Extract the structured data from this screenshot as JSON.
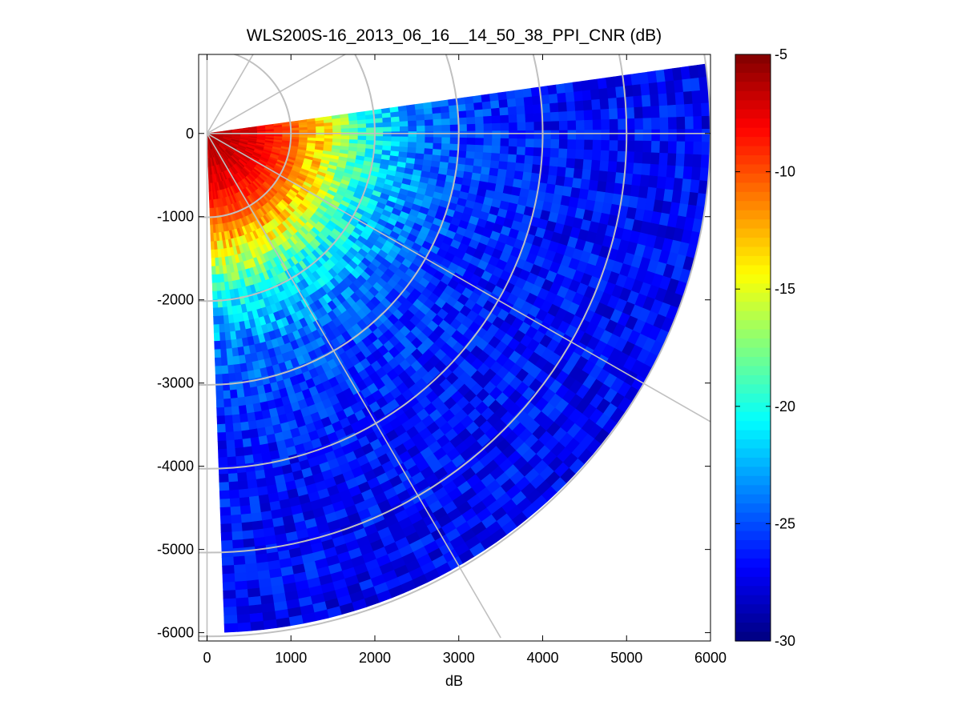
{
  "chart_data": {
    "type": "heatmap",
    "subtype": "polar-ppi-sector",
    "title": "WLS200S-16_2013_06_16__14_50_38_PPI_CNR (dB)",
    "xlabel": "dB",
    "ylabel": "",
    "xlim": [
      -100,
      6000
    ],
    "ylim": [
      -6100,
      950
    ],
    "x_ticks": [
      0,
      1000,
      2000,
      3000,
      4000,
      5000,
      6000
    ],
    "x_tick_labels": [
      "0",
      "1000",
      "2000",
      "3000",
      "4000",
      "5000",
      "6000"
    ],
    "y_ticks": [
      0,
      -1000,
      -2000,
      -3000,
      -4000,
      -5000,
      -6000
    ],
    "y_tick_labels": [
      "0",
      "-1000",
      "-2000",
      "-3000",
      "-4000",
      "-5000",
      "-6000"
    ],
    "sector": {
      "azimuth_start_deg": 8,
      "azimuth_end_deg": -88,
      "range_min": 0,
      "range_max": 6000
    },
    "grid": {
      "range_rings": [
        1000,
        2000,
        3000,
        4000,
        5000,
        6000
      ],
      "spokes_deg": [
        0,
        30,
        60,
        90,
        -30,
        -60,
        -90
      ],
      "color": "#c0c0c0"
    },
    "cnr_profile": {
      "range_breaks": [
        0,
        600,
        1000,
        1400,
        1800,
        2200,
        2600,
        3200,
        4000,
        6000
      ],
      "cnr_db": [
        -6,
        -7.5,
        -10,
        -14,
        -19,
        -22,
        -24,
        -25.5,
        -26.5,
        -27
      ]
    },
    "colorbar": {
      "clim": [
        -30,
        -5
      ],
      "ticks": [
        -5,
        -10,
        -15,
        -20,
        -25,
        -30
      ],
      "tick_labels": [
        "-5",
        "-10",
        "-15",
        "-20",
        "-25",
        "-30"
      ],
      "colormap": "jet"
    }
  }
}
